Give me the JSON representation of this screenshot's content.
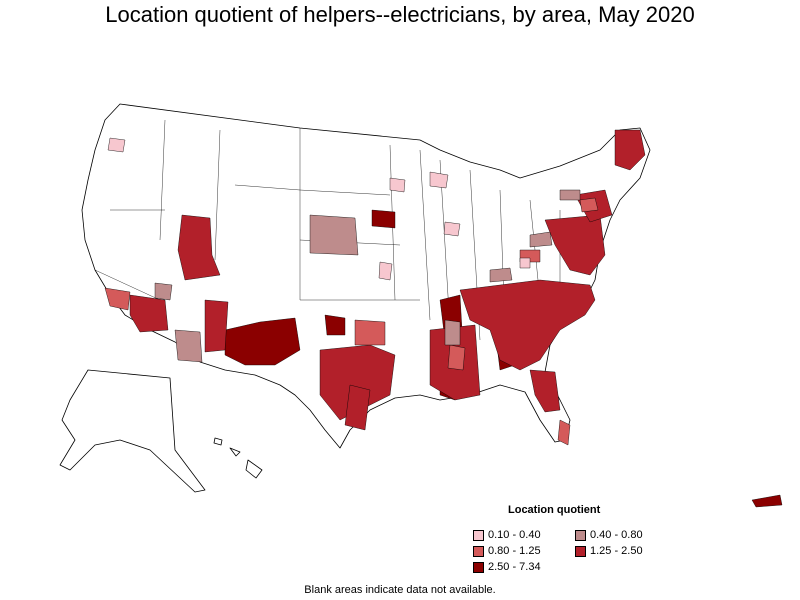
{
  "title": "Location quotient of helpers--electricians, by area, May 2020",
  "legend": {
    "title": "Location quotient",
    "items": [
      {
        "label": "0.10 - 0.40",
        "color": "#f7c7cf"
      },
      {
        "label": "0.40 - 0.80",
        "color": "#be8c8c"
      },
      {
        "label": "0.80 - 1.25",
        "color": "#d45a5a"
      },
      {
        "label": "1.25 - 2.50",
        "color": "#b2202a"
      },
      {
        "label": "2.50 - 7.34",
        "color": "#8b0000"
      }
    ]
  },
  "footnote": "Blank areas indicate data not available.",
  "colors": {
    "outline": "#000000",
    "blank": "#ffffff"
  }
}
